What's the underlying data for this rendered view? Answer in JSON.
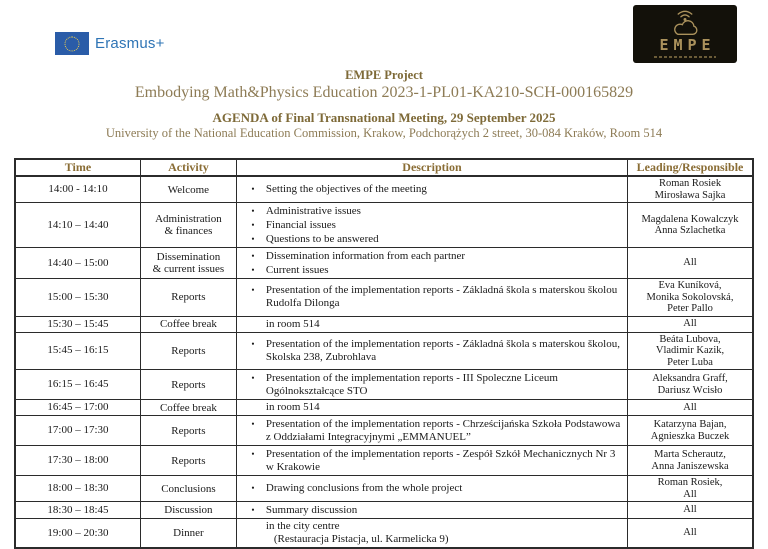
{
  "logos": {
    "erasmus": {
      "label": "Erasmus+",
      "flag_color": "#2a5ca8",
      "star_color": "#f4d24b",
      "text_color": "#2e74b5"
    },
    "empe": {
      "label": "EMPE",
      "bg_color": "#13110a",
      "accent_color": "#ab925c"
    }
  },
  "header": {
    "project_title": "EMPE Project",
    "project_code_line": "Embodying Math&Physics Education 2023-1-PL01-KA210-SCH-000165829",
    "agenda_title": "AGENDA of Final Transnational Meeting, 29 September 2025",
    "venue_line": "University of the National Education Commission, Krakow, Podchorążych 2 street, 30-084 Kraków, Room 514",
    "accent_bold_color": "#7e6a38",
    "accent_regular_color": "#8d7b55"
  },
  "table": {
    "columns": [
      "Time",
      "Activity",
      "Description",
      "Leading/Responsible"
    ],
    "rows": [
      {
        "time": "14:00 - 14:10",
        "activity": [
          "Welcome"
        ],
        "description_bullets": [
          "Setting the objectives of the meeting"
        ],
        "description_plain": [],
        "leading": [
          "Roman Rosiek",
          "Mirosława Sajka"
        ]
      },
      {
        "time": "14:10 – 14:40",
        "activity": [
          "Administration",
          "& finances"
        ],
        "description_bullets": [
          "Administrative issues",
          "Financial issues",
          "Questions to be answered"
        ],
        "description_plain": [],
        "leading": [
          "Magdalena Kowalczyk",
          "Anna Szlachetka"
        ]
      },
      {
        "time": "14:40 – 15:00",
        "activity": [
          "Dissemination",
          "& current issues"
        ],
        "description_bullets": [
          "Dissemination information from each partner",
          "Current issues"
        ],
        "description_plain": [],
        "leading": [
          "All"
        ]
      },
      {
        "time": "15:00 – 15:30",
        "activity": [
          "Reports"
        ],
        "description_bullets": [
          "Presentation of the implementation reports - Základná škola s materskou školou Rudolfa Dilonga"
        ],
        "description_plain": [],
        "leading": [
          "Eva Kuníková,",
          "Monika Sokolovská,",
          "Peter Pallo"
        ]
      },
      {
        "time": "15:30 – 15:45",
        "activity": [
          "Coffee break"
        ],
        "description_bullets": [],
        "description_plain": [
          "in room 514"
        ],
        "leading": [
          "All"
        ]
      },
      {
        "time": "15:45 – 16:15",
        "activity": [
          "Reports"
        ],
        "description_bullets": [
          "Presentation of the implementation reports  - Základná škola s materskou školou, Skolska 238, Zubrohlava"
        ],
        "description_plain": [],
        "leading": [
          "Beáta Lubova,",
          "Vladimir Kazik,",
          "Peter Luba"
        ]
      },
      {
        "time": "16:15 – 16:45",
        "activity": [
          "Reports"
        ],
        "description_bullets": [
          "Presentation of the implementation reports - III Spoleczne Liceum Ogólnokształcące STO"
        ],
        "description_plain": [],
        "leading": [
          "Aleksandra Graff,",
          "Dariusz Wcisło"
        ]
      },
      {
        "time": "16:45 – 17:00",
        "activity": [
          "Coffee break"
        ],
        "description_bullets": [],
        "description_plain": [
          "in room 514"
        ],
        "leading": [
          "All"
        ]
      },
      {
        "time": "17:00 – 17:30",
        "activity": [
          "Reports"
        ],
        "description_bullets": [
          "Presentation of the implementation reports - Chrześcijańska Szkoła Podstawowa z Oddziałami Integracyjnymi „EMMANUEL”"
        ],
        "description_plain": [],
        "leading": [
          "Katarzyna Bajan,",
          "Agnieszka Buczek"
        ]
      },
      {
        "time": "17:30 – 18:00",
        "activity": [
          "Reports"
        ],
        "description_bullets": [
          "Presentation of the implementation reports - Zespół Szkół Mechanicznych Nr 3 w Krakowie"
        ],
        "description_plain": [],
        "leading": [
          "Marta Scherautz,",
          "Anna Janiszewska"
        ]
      },
      {
        "time": "18:00 – 18:30",
        "activity": [
          "Conclusions"
        ],
        "description_bullets": [
          "Drawing conclusions from the whole project"
        ],
        "description_plain": [],
        "leading": [
          "Roman Rosiek,",
          "All"
        ]
      },
      {
        "time": "18:30 – 18:45",
        "activity": [
          "Discussion"
        ],
        "description_bullets": [
          "Summary discussion"
        ],
        "description_plain": [],
        "leading": [
          "All"
        ]
      },
      {
        "time": "19:00 – 20:30",
        "activity": [
          "Dinner"
        ],
        "description_bullets": [],
        "description_plain": [
          "in the city centre",
          "(Restauracja Pistacja, ul. Karmelicka 9)"
        ],
        "leading": [
          "All"
        ]
      }
    ]
  }
}
